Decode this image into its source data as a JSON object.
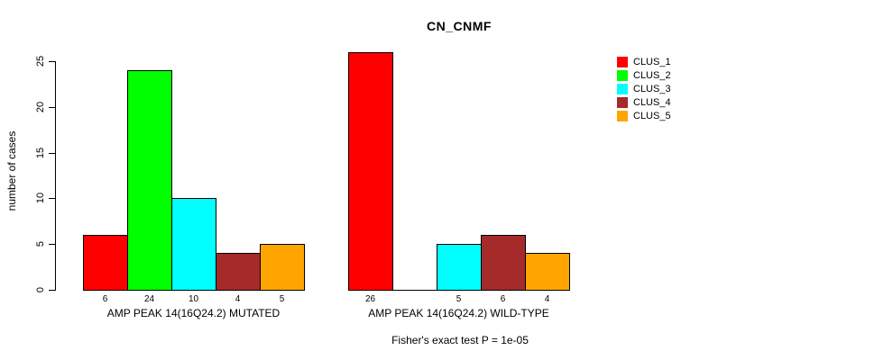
{
  "title": "CN_CNMF",
  "y_axis": {
    "label": "number of cases"
  },
  "footer": "Fisher's exact test P = 1e-05",
  "legend": {
    "position": "right",
    "items": [
      {
        "label": "CLUS_1",
        "color": "#FF0000"
      },
      {
        "label": "CLUS_2",
        "color": "#00FF00"
      },
      {
        "label": "CLUS_3",
        "color": "#00FFFF"
      },
      {
        "label": "CLUS_4",
        "color": "#A52A2A"
      },
      {
        "label": "CLUS_5",
        "color": "#FFA500"
      }
    ]
  },
  "chart_data": {
    "type": "bar",
    "title": "CN_CNMF",
    "xlabel": "",
    "ylabel": "number of cases",
    "ylim": [
      0,
      25
    ],
    "yticks": [
      0,
      5,
      10,
      15,
      20,
      25
    ],
    "grid": false,
    "legend_position": "right",
    "categories": [
      "AMP PEAK 14(16Q24.2) MUTATED",
      "AMP PEAK 14(16Q24.2) WILD-TYPE"
    ],
    "series": [
      {
        "name": "CLUS_1",
        "color": "#FF0000",
        "values": [
          6,
          26
        ]
      },
      {
        "name": "CLUS_2",
        "color": "#00FF00",
        "values": [
          24,
          0
        ]
      },
      {
        "name": "CLUS_3",
        "color": "#00FFFF",
        "values": [
          10,
          5
        ]
      },
      {
        "name": "CLUS_4",
        "color": "#A52A2A",
        "values": [
          4,
          6
        ]
      },
      {
        "name": "CLUS_5",
        "color": "#FFA500",
        "values": [
          5,
          4
        ]
      }
    ],
    "bar_value_labels": [
      [
        "6",
        "24",
        "10",
        "4",
        "5"
      ],
      [
        "26",
        "",
        "5",
        "6",
        "4"
      ]
    ],
    "annotation": "Fisher's exact test P = 1e-05"
  }
}
